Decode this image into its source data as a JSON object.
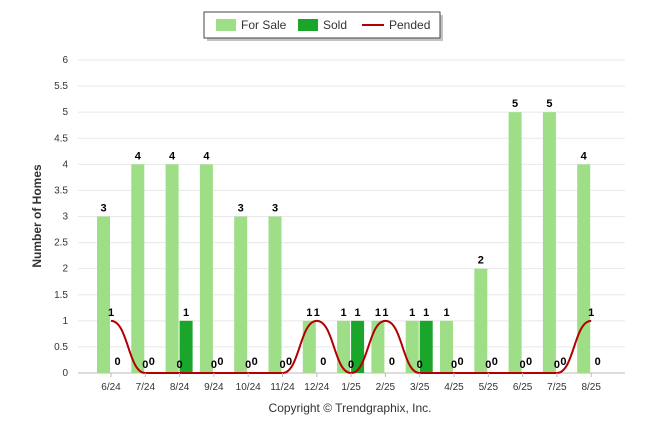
{
  "chart_data": {
    "type": "bar",
    "categories": [
      "6/24",
      "7/24",
      "8/24",
      "9/24",
      "10/24",
      "11/24",
      "12/24",
      "1/25",
      "2/25",
      "3/25",
      "4/25",
      "5/25",
      "6/25",
      "7/25",
      "8/25"
    ],
    "series": [
      {
        "name": "For Sale",
        "type": "bar",
        "color": "#9dde87",
        "values": [
          3,
          4,
          4,
          4,
          3,
          3,
          1,
          1,
          1,
          1,
          1,
          2,
          5,
          5,
          4
        ]
      },
      {
        "name": "Sold",
        "type": "bar",
        "color": "#1aa52b",
        "values": [
          0,
          0,
          1,
          0,
          0,
          0,
          0,
          1,
          0,
          1,
          0,
          0,
          0,
          0,
          0
        ]
      },
      {
        "name": "Pended",
        "type": "line",
        "color": "#b30000",
        "values": [
          1,
          0,
          0,
          0,
          0,
          0,
          1,
          0,
          1,
          0,
          0,
          0,
          0,
          0,
          1
        ]
      }
    ],
    "ylabel": "Number of Homes",
    "ylim": [
      0,
      6
    ],
    "yticks": [
      "0",
      "0.5",
      "1",
      "1.5",
      "2",
      "2.5",
      "3",
      "3.5",
      "4",
      "4.5",
      "5",
      "5.5",
      "6"
    ],
    "grid": true,
    "legend_position": "top-center"
  },
  "credit": "Copyright © Trendgraphix, Inc."
}
